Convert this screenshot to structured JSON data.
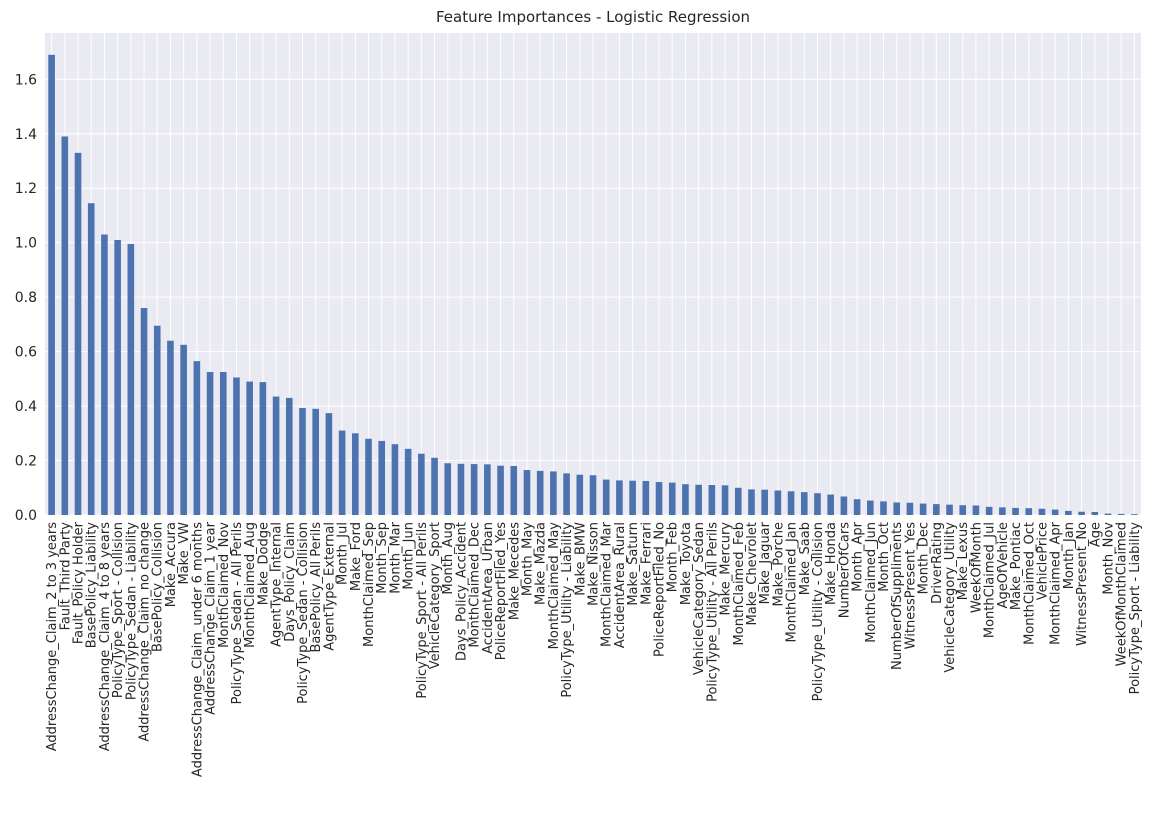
{
  "colors": {
    "plot_bg": "#eaeaf2",
    "grid": "#ffffff",
    "bar": "#4c72b0"
  },
  "chart_data": {
    "type": "bar",
    "title": "Feature Importances - Logistic Regression",
    "xlabel": "",
    "ylabel": "",
    "ylim": [
      0,
      1.77
    ],
    "yticks": [
      0.0,
      0.2,
      0.4,
      0.6,
      0.8,
      1.0,
      1.2,
      1.4,
      1.6
    ],
    "ytick_labels": [
      "0.0",
      "0.2",
      "0.4",
      "0.6",
      "0.8",
      "1.0",
      "1.2",
      "1.4",
      "1.6"
    ],
    "grid": true,
    "categories": [
      "AddressChange_Claim_2 to 3 years",
      "Fault_Third Party",
      "Fault_Policy Holder",
      "BasePolicy_Liability",
      "AddressChange_Claim_4 to 8 years",
      "PolicyType_Sport - Collision",
      "PolicyType_Sedan - Liability",
      "AddressChange_Claim_no change",
      "BasePolicy_Collision",
      "Make_Accura",
      "Make_VW",
      "AddressChange_Claim_under 6 months",
      "AddressChange_Claim_1 year",
      "MonthClaimed_Nov",
      "PolicyType_Sedan - All Perils",
      "MonthClaimed_Aug",
      "Make_Dodge",
      "AgentType_Internal",
      "Days_Policy_Claim",
      "PolicyType_Sedan - Collision",
      "BasePolicy_All Perils",
      "AgentType_External",
      "Month_Jul",
      "Make_Ford",
      "MonthClaimed_Sep",
      "Month_Sep",
      "Month_Mar",
      "Month_Jun",
      "PolicyType_Sport - All Perils",
      "VehicleCategory_Sport",
      "Month_Aug",
      "Days_Policy_Accident",
      "MonthClaimed_Dec",
      "AccidentArea_Urban",
      "PoliceReportFiled_Yes",
      "Make_Mecedes",
      "Month_May",
      "Make_Mazda",
      "MonthClaimed_May",
      "PolicyType_Utility - Liability",
      "Make_BMW",
      "Make_Nisson",
      "MonthClaimed_Mar",
      "AccidentArea_Rural",
      "Make_Saturn",
      "Make_Ferrari",
      "PoliceReportFiled_No",
      "Month_Feb",
      "Make_Toyota",
      "VehicleCategory_Sedan",
      "PolicyType_Utility - All Perils",
      "Make_Mercury",
      "MonthClaimed_Feb",
      "Make_Chevrolet",
      "Make_Jaguar",
      "Make_Porche",
      "MonthClaimed_Jan",
      "Make_Saab",
      "PolicyType_Utility - Collision",
      "Make_Honda",
      "NumberOfCars",
      "Month_Apr",
      "MonthClaimed_Jun",
      "Month_Oct",
      "NumberOfSuppliments",
      "WitnessPresent_Yes",
      "Month_Dec",
      "DriverRating",
      "VehicleCategory_Utility",
      "Make_Lexus",
      "WeekOfMonth",
      "MonthClaimed_Jul",
      "AgeOfVehicle",
      "Make_Pontiac",
      "MonthClaimed_Oct",
      "VehiclePrice",
      "MonthClaimed_Apr",
      "Month_Jan",
      "WitnessPresent_No",
      "Age",
      "Month_Nov",
      "WeekOfMonthClaimed",
      "PolicyType_Sport - Liability"
    ],
    "values": [
      1.69,
      1.39,
      1.33,
      1.145,
      1.03,
      1.01,
      0.995,
      0.76,
      0.695,
      0.64,
      0.625,
      0.565,
      0.525,
      0.525,
      0.505,
      0.49,
      0.488,
      0.435,
      0.43,
      0.393,
      0.39,
      0.374,
      0.31,
      0.3,
      0.28,
      0.272,
      0.26,
      0.243,
      0.225,
      0.21,
      0.19,
      0.188,
      0.187,
      0.186,
      0.181,
      0.18,
      0.165,
      0.162,
      0.16,
      0.153,
      0.148,
      0.146,
      0.13,
      0.127,
      0.126,
      0.125,
      0.121,
      0.119,
      0.113,
      0.111,
      0.11,
      0.109,
      0.1,
      0.094,
      0.093,
      0.09,
      0.087,
      0.084,
      0.08,
      0.075,
      0.068,
      0.058,
      0.053,
      0.05,
      0.046,
      0.045,
      0.042,
      0.04,
      0.038,
      0.036,
      0.035,
      0.03,
      0.028,
      0.026,
      0.025,
      0.023,
      0.02,
      0.015,
      0.012,
      0.011,
      0.005,
      0.004,
      0.003
    ]
  }
}
